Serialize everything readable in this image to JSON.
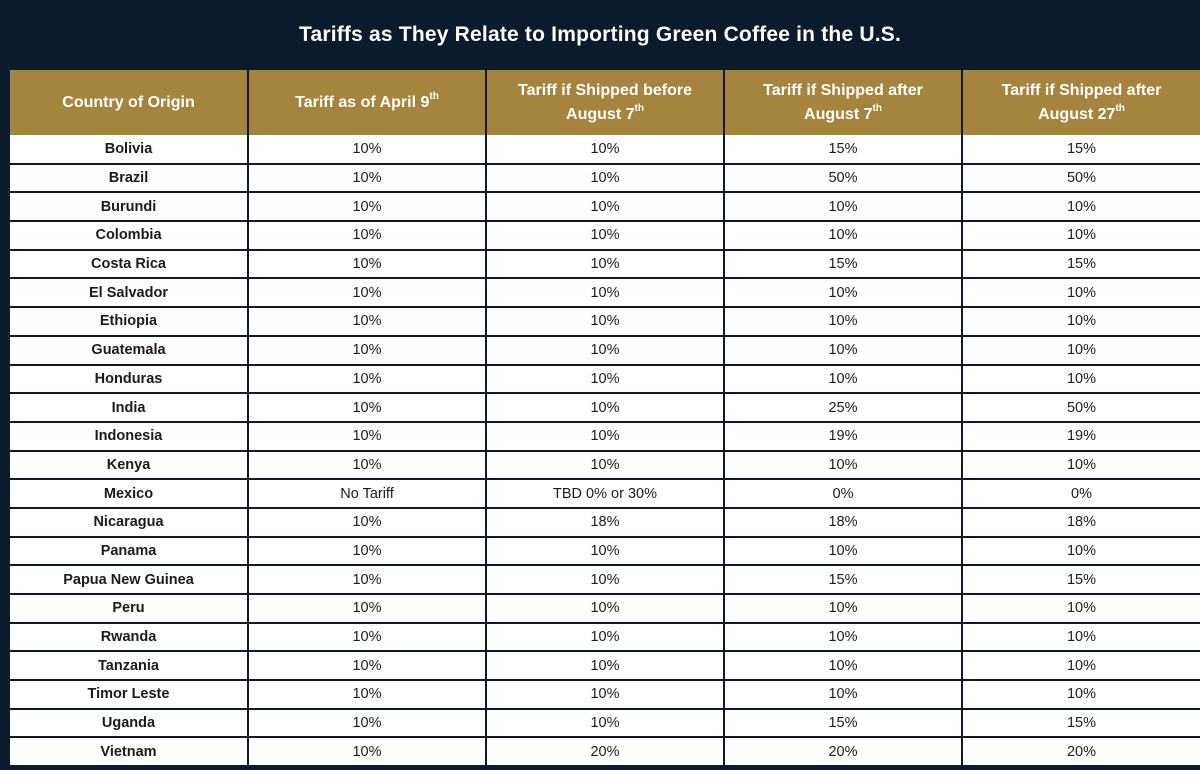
{
  "title": "Tariffs as They Relate to Importing Green Coffee in the U.S.",
  "colors": {
    "background": "#0c1b2b",
    "header_fill": "#a5843e",
    "cell_fill": "#ffffff"
  },
  "table": {
    "headers": [
      {
        "text": "Country of Origin",
        "sup": ""
      },
      {
        "text": "Tariff as of April 9",
        "sup": "th"
      },
      {
        "text": "Tariff if Shipped before August 7",
        "sup": "th"
      },
      {
        "text": "Tariff if Shipped after August 7",
        "sup": "th"
      },
      {
        "text": "Tariff if Shipped after August 27",
        "sup": "th"
      }
    ],
    "rows": [
      [
        "Bolivia",
        "10%",
        "10%",
        "15%",
        "15%"
      ],
      [
        "Brazil",
        "10%",
        "10%",
        "50%",
        "50%"
      ],
      [
        "Burundi",
        "10%",
        "10%",
        "10%",
        "10%"
      ],
      [
        "Colombia",
        "10%",
        "10%",
        "10%",
        "10%"
      ],
      [
        "Costa Rica",
        "10%",
        "10%",
        "15%",
        "15%"
      ],
      [
        "El Salvador",
        "10%",
        "10%",
        "10%",
        "10%"
      ],
      [
        "Ethiopia",
        "10%",
        "10%",
        "10%",
        "10%"
      ],
      [
        "Guatemala",
        "10%",
        "10%",
        "10%",
        "10%"
      ],
      [
        "Honduras",
        "10%",
        "10%",
        "10%",
        "10%"
      ],
      [
        "India",
        "10%",
        "10%",
        "25%",
        "50%"
      ],
      [
        "Indonesia",
        "10%",
        "10%",
        "19%",
        "19%"
      ],
      [
        "Kenya",
        "10%",
        "10%",
        "10%",
        "10%"
      ],
      [
        "Mexico",
        "No Tariff",
        "TBD 0% or 30%",
        "0%",
        "0%"
      ],
      [
        "Nicaragua",
        "10%",
        "18%",
        "18%",
        "18%"
      ],
      [
        "Panama",
        "10%",
        "10%",
        "10%",
        "10%"
      ],
      [
        "Papua New Guinea",
        "10%",
        "10%",
        "15%",
        "15%"
      ],
      [
        "Peru",
        "10%",
        "10%",
        "10%",
        "10%"
      ],
      [
        "Rwanda",
        "10%",
        "10%",
        "10%",
        "10%"
      ],
      [
        "Tanzania",
        "10%",
        "10%",
        "10%",
        "10%"
      ],
      [
        "Timor Leste",
        "10%",
        "10%",
        "10%",
        "10%"
      ],
      [
        "Uganda",
        "10%",
        "10%",
        "15%",
        "15%"
      ],
      [
        "Vietnam",
        "10%",
        "20%",
        "20%",
        "20%"
      ]
    ]
  }
}
